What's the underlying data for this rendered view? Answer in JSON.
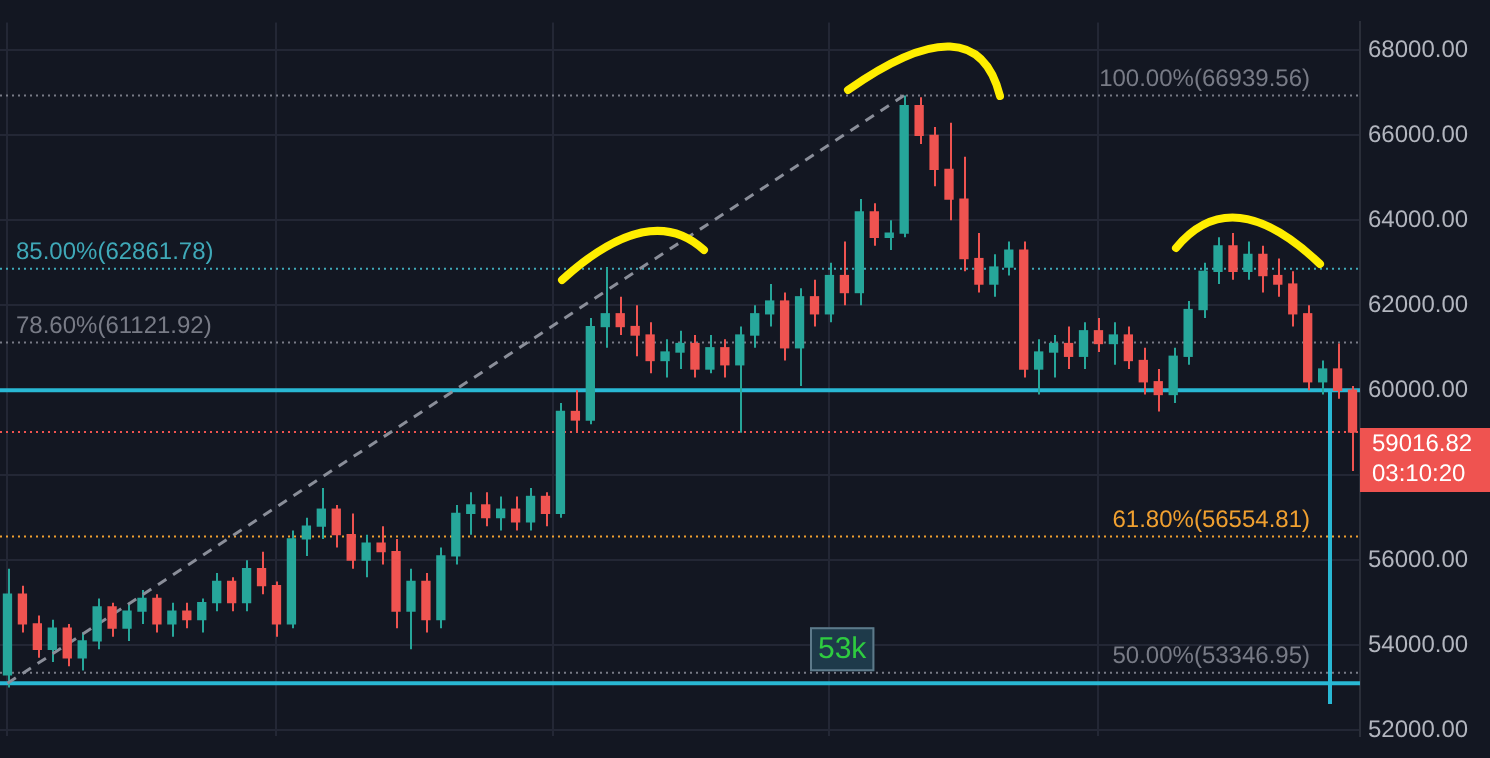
{
  "chart_data": {
    "type": "candlestick",
    "categories": [
      null,
      null,
      null,
      null,
      null,
      null,
      null,
      null,
      null,
      null,
      null,
      null,
      null,
      null,
      null,
      null,
      null,
      null,
      null,
      null,
      null,
      null,
      null,
      null,
      null,
      null,
      null,
      null,
      null,
      null,
      null,
      null,
      null,
      null,
      null,
      null,
      null,
      null,
      null,
      null,
      null,
      null,
      null,
      null,
      null,
      null,
      null,
      null,
      null,
      null,
      null,
      null,
      null,
      null,
      null,
      null,
      null,
      null,
      null,
      null,
      null,
      null,
      null,
      null,
      null,
      null,
      null,
      null,
      null,
      null,
      null,
      null,
      null,
      null,
      null,
      null,
      null,
      null,
      null,
      null,
      null,
      null,
      null,
      null,
      null,
      null,
      null,
      null,
      null,
      null,
      null
    ],
    "ohlc": [
      [
        53300,
        55800,
        53000,
        55200
      ],
      [
        55200,
        55400,
        54300,
        54500
      ],
      [
        54500,
        54700,
        53700,
        53900
      ],
      [
        53900,
        54600,
        53600,
        54400
      ],
      [
        54400,
        54500,
        53500,
        53700
      ],
      [
        53700,
        54300,
        53400,
        54100
      ],
      [
        54100,
        55100,
        53900,
        54900
      ],
      [
        54900,
        55000,
        54200,
        54400
      ],
      [
        54400,
        55000,
        54100,
        54800
      ],
      [
        54800,
        55300,
        54500,
        55100
      ],
      [
        55100,
        55200,
        54300,
        54500
      ],
      [
        54500,
        55000,
        54200,
        54800
      ],
      [
        54800,
        55000,
        54400,
        54600
      ],
      [
        54600,
        55100,
        54300,
        55000
      ],
      [
        55000,
        55700,
        54800,
        55500
      ],
      [
        55500,
        55600,
        54800,
        55000
      ],
      [
        55000,
        56000,
        54800,
        55800
      ],
      [
        55800,
        56200,
        55200,
        55400
      ],
      [
        55400,
        55500,
        54200,
        54500
      ],
      [
        54500,
        56700,
        54400,
        56500
      ],
      [
        56500,
        57000,
        56100,
        56800
      ],
      [
        56800,
        57700,
        56500,
        57200
      ],
      [
        57200,
        57300,
        56300,
        56600
      ],
      [
        56600,
        57100,
        55800,
        56000
      ],
      [
        56000,
        56600,
        55600,
        56400
      ],
      [
        56400,
        56800,
        55900,
        56200
      ],
      [
        56200,
        56500,
        54400,
        54800
      ],
      [
        54800,
        55800,
        53900,
        55500
      ],
      [
        55500,
        55700,
        54300,
        54600
      ],
      [
        54600,
        56300,
        54400,
        56100
      ],
      [
        56100,
        57300,
        55900,
        57100
      ],
      [
        57100,
        57600,
        56600,
        57300
      ],
      [
        57300,
        57600,
        56800,
        57000
      ],
      [
        57000,
        57500,
        56700,
        57200
      ],
      [
        57200,
        57500,
        56700,
        56900
      ],
      [
        56900,
        57700,
        56700,
        57500
      ],
      [
        57500,
        57600,
        56800,
        57100
      ],
      [
        57100,
        59700,
        57000,
        59500
      ],
      [
        59500,
        60000,
        59000,
        59300
      ],
      [
        59300,
        61700,
        59200,
        61500
      ],
      [
        61500,
        62900,
        61000,
        61800
      ],
      [
        61800,
        62200,
        61300,
        61500
      ],
      [
        61500,
        62000,
        60800,
        61300
      ],
      [
        61300,
        61600,
        60400,
        60700
      ],
      [
        60700,
        61200,
        60300,
        60900
      ],
      [
        60900,
        61400,
        60500,
        61100
      ],
      [
        61100,
        61300,
        60300,
        60500
      ],
      [
        60500,
        61300,
        60400,
        61000
      ],
      [
        61000,
        61200,
        60300,
        60600
      ],
      [
        60600,
        61500,
        59000,
        61300
      ],
      [
        61300,
        62000,
        61000,
        61800
      ],
      [
        61800,
        62500,
        61500,
        62100
      ],
      [
        62100,
        62300,
        60700,
        61000
      ],
      [
        61000,
        62400,
        60100,
        62200
      ],
      [
        62200,
        62600,
        61500,
        61800
      ],
      [
        61800,
        63000,
        61600,
        62700
      ],
      [
        62700,
        63500,
        62000,
        62300
      ],
      [
        62300,
        64500,
        62000,
        64200
      ],
      [
        64200,
        64400,
        63400,
        63600
      ],
      [
        63600,
        64000,
        63300,
        63700
      ],
      [
        63700,
        66940,
        63600,
        66700
      ],
      [
        66700,
        66900,
        65800,
        66000
      ],
      [
        66000,
        66200,
        64800,
        65200
      ],
      [
        65200,
        66300,
        64000,
        64500
      ],
      [
        64500,
        65500,
        62800,
        63100
      ],
      [
        63100,
        63700,
        62300,
        62500
      ],
      [
        62500,
        63200,
        62200,
        62900
      ],
      [
        62900,
        63500,
        62700,
        63300
      ],
      [
        63300,
        63500,
        60300,
        60500
      ],
      [
        60500,
        61200,
        59900,
        60900
      ],
      [
        60900,
        61300,
        60300,
        61100
      ],
      [
        61100,
        61500,
        60500,
        60800
      ],
      [
        60800,
        61600,
        60500,
        61400
      ],
      [
        61400,
        61700,
        60900,
        61100
      ],
      [
        61100,
        61600,
        60600,
        61300
      ],
      [
        61300,
        61500,
        60500,
        60700
      ],
      [
        60700,
        61000,
        59900,
        60200
      ],
      [
        60200,
        60500,
        59500,
        59900
      ],
      [
        59900,
        61000,
        59700,
        60800
      ],
      [
        60800,
        62100,
        60600,
        61900
      ],
      [
        61900,
        63000,
        61700,
        62800
      ],
      [
        62800,
        63600,
        62500,
        63400
      ],
      [
        63400,
        63700,
        62600,
        62800
      ],
      [
        62800,
        63500,
        62600,
        63200
      ],
      [
        63200,
        63400,
        62300,
        62700
      ],
      [
        62700,
        63100,
        62200,
        62500
      ],
      [
        62500,
        62800,
        61500,
        61800
      ],
      [
        61800,
        62000,
        60000,
        60200
      ],
      [
        60200,
        60700,
        59900,
        60500
      ],
      [
        60500,
        61100,
        59800,
        60000
      ],
      [
        60000,
        60100,
        58100,
        59016.82
      ]
    ],
    "series": [
      {
        "type": "line",
        "color": "#8a8e99",
        "line_style": "dashed",
        "marker": "none",
        "values": [
          53100,
          null,
          null,
          null,
          null,
          null,
          null,
          null,
          null,
          null,
          null,
          null,
          null,
          null,
          null,
          null,
          null,
          null,
          null,
          null,
          null,
          null,
          null,
          null,
          null,
          null,
          null,
          null,
          null,
          null,
          null,
          null,
          null,
          null,
          null,
          null,
          null,
          null,
          null,
          null,
          null,
          null,
          null,
          null,
          null,
          null,
          null,
          null,
          null,
          null,
          null,
          null,
          null,
          null,
          null,
          null,
          null,
          null,
          null,
          null,
          66940,
          null,
          null,
          null,
          null,
          null,
          null,
          null,
          null,
          null,
          null,
          null,
          null,
          null,
          null,
          null,
          null,
          null,
          null,
          null,
          null,
          null,
          null,
          null,
          null,
          null,
          null,
          null,
          null,
          null,
          null
        ]
      }
    ],
    "ylim": [
      51870,
      68660
    ],
    "yticks": [
      {
        "value": 52000,
        "label": "52000.00"
      },
      {
        "value": 54000,
        "label": "54000.00"
      },
      {
        "value": 56000,
        "label": "56000.00"
      },
      {
        "value": 58000,
        "label": null
      },
      {
        "value": 60000,
        "label": "60000.00"
      },
      {
        "value": 62000,
        "label": "62000.00"
      },
      {
        "value": 64000,
        "label": "64000.00"
      },
      {
        "value": 66000,
        "label": "66000.00"
      },
      {
        "value": 68000,
        "label": "68000.00"
      }
    ],
    "ref_lines": [
      {
        "axis": "y",
        "value": 66939.56,
        "label": "100.00%(66939.56)",
        "color": "#787b86",
        "line_style": "dotted"
      },
      {
        "axis": "y",
        "value": 62861.78,
        "label": "85.00%(62861.78)",
        "color": "#3fa9b8",
        "line_style": "dotted"
      },
      {
        "axis": "y",
        "value": 61121.92,
        "label": "78.60%(61121.92)",
        "color": "#787b86",
        "line_style": "dotted"
      },
      {
        "axis": "y",
        "value": 56554.81,
        "label": "61.80%(56554.81)",
        "color": "#f0a030",
        "line_style": "dotted"
      },
      {
        "axis": "y",
        "value": 53346.95,
        "label": "50.00%(53346.95)",
        "color": "#787b86",
        "line_style": "dotted"
      },
      {
        "axis": "y",
        "value": 59016.82,
        "label": "59016.82",
        "color": "#ef5350",
        "line_style": "dotted"
      },
      {
        "axis": "y",
        "value": 60000,
        "color": "#29b8d4",
        "line_style": "solid"
      },
      {
        "axis": "y",
        "value": 53100,
        "color": "#29b8d4",
        "line_style": "solid"
      }
    ],
    "annotations": [
      "03:10:20",
      "53k"
    ],
    "grid": true,
    "tick_labels": "y"
  }
}
